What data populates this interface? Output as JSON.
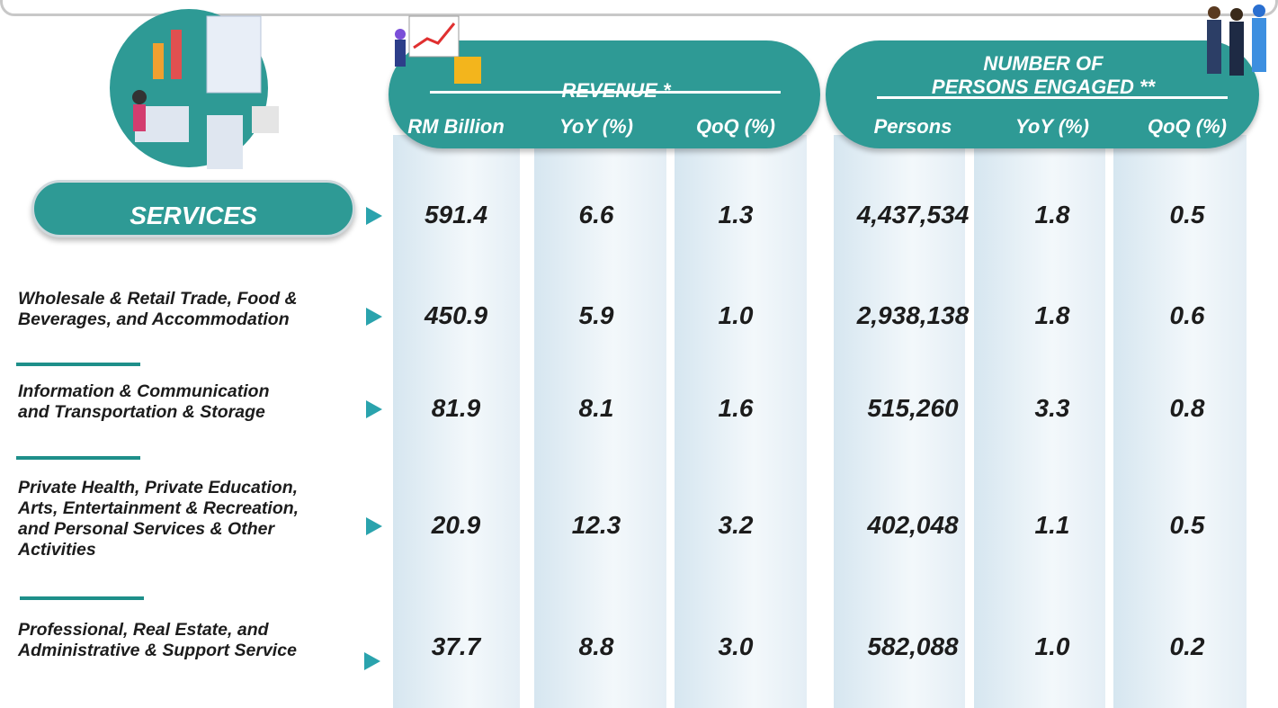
{
  "header": {
    "revenue": "REVENUE *",
    "persons": [
      "NUMBER OF",
      "PERSONS ENGAGED **"
    ]
  },
  "columns": [
    "RM Billion",
    "YoY (%)",
    "QoQ (%)",
    "Persons",
    "YoY (%)",
    "QoQ (%)"
  ],
  "rows": [
    {
      "label": [
        "SERVICES"
      ],
      "values": [
        "591.4",
        "6.6",
        "1.3",
        "4,437,534",
        "1.8",
        "0.5"
      ]
    },
    {
      "label": [
        "Wholesale & Retail Trade, Food &",
        "Beverages, and Accommodation"
      ],
      "values": [
        "450.9",
        "5.9",
        "1.0",
        "2,938,138",
        "1.8",
        "0.6"
      ]
    },
    {
      "label": [
        "Information & Communication",
        "and Transportation & Storage"
      ],
      "values": [
        "81.9",
        "8.1",
        "1.6",
        "515,260",
        "3.3",
        "0.8"
      ]
    },
    {
      "label": [
        "Private Health, Private Education,",
        "Arts, Entertainment & Recreation,",
        "and Personal Services & Other",
        "Activities"
      ],
      "values": [
        "20.9",
        "12.3",
        "3.2",
        "402,048",
        "1.1",
        "0.5"
      ]
    },
    {
      "label": [
        "Professional, Real Estate, and",
        "Administrative & Support Service"
      ],
      "values": [
        "37.7",
        "8.8",
        "3.0",
        "582,088",
        "1.0",
        "0.2"
      ]
    }
  ]
}
